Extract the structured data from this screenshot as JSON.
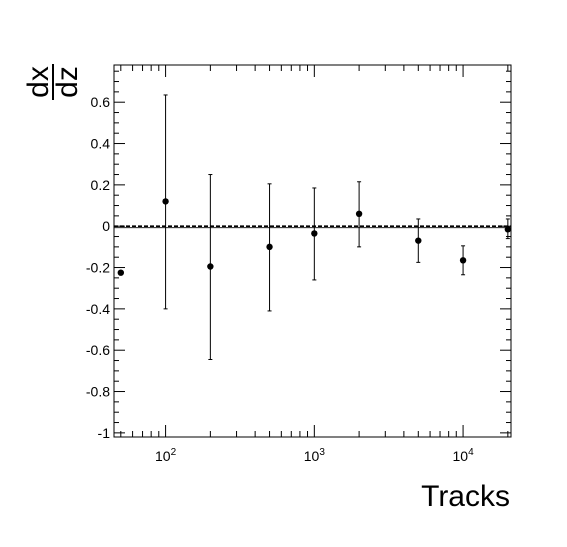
{
  "chart_data": {
    "type": "scatter",
    "title": "",
    "xlabel": "Tracks",
    "ylabel": {
      "numerator": "dx",
      "denominator": "dz"
    },
    "x_scale": "log",
    "xlim": [
      45,
      21000
    ],
    "ylim": [
      -1.02,
      0.78
    ],
    "grid": false,
    "legend": "none",
    "reference_line": {
      "y": 0,
      "style": "dashed"
    },
    "y_ticks": [
      {
        "value": 0.6,
        "label": "0.6"
      },
      {
        "value": 0.4,
        "label": "0.4"
      },
      {
        "value": 0.2,
        "label": "0.2"
      },
      {
        "value": 0,
        "label": "0"
      },
      {
        "value": -0.2,
        "label": "-0.2"
      },
      {
        "value": -0.4,
        "label": "-0.4"
      },
      {
        "value": -0.6,
        "label": "-0.6"
      },
      {
        "value": -0.8,
        "label": "-0.8"
      },
      {
        "value": -1,
        "label": "-1"
      }
    ],
    "x_ticks": [
      {
        "value": 100,
        "base": "10",
        "exp": "2"
      },
      {
        "value": 1000,
        "base": "10",
        "exp": "3"
      },
      {
        "value": 10000,
        "base": "10",
        "exp": "4"
      }
    ],
    "points": [
      {
        "x": 50,
        "y": -0.225,
        "lo": -0.225,
        "hi": -0.225
      },
      {
        "x": 100,
        "y": 0.12,
        "lo": -0.4,
        "hi": 0.635
      },
      {
        "x": 200,
        "y": -0.195,
        "lo": -0.645,
        "hi": 0.25
      },
      {
        "x": 500,
        "y": -0.1,
        "lo": -0.41,
        "hi": 0.205
      },
      {
        "x": 1000,
        "y": -0.035,
        "lo": -0.26,
        "hi": 0.185
      },
      {
        "x": 2000,
        "y": 0.06,
        "lo": -0.1,
        "hi": 0.215
      },
      {
        "x": 5000,
        "y": -0.07,
        "lo": -0.175,
        "hi": 0.035
      },
      {
        "x": 10000,
        "y": -0.165,
        "lo": -0.235,
        "hi": -0.095
      },
      {
        "x": 20000,
        "y": -0.015,
        "lo": -0.06,
        "hi": 0.035
      }
    ],
    "colors": {
      "axis": "#000000",
      "marker": "#000000"
    }
  }
}
